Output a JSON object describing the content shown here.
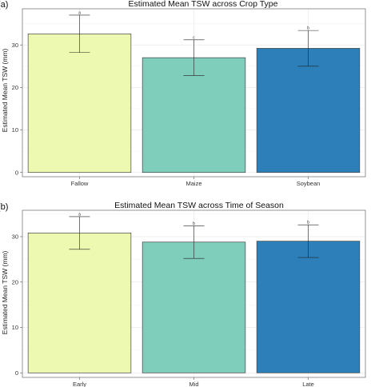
{
  "chart_data": [
    {
      "type": "bar",
      "panel": "(a)",
      "title": "Estimated Mean TSW across Crop Type",
      "xlabel": "",
      "ylabel": "Estimated Mean TSW (mm)",
      "categories": [
        "Fallow",
        "Maize",
        "Soybean"
      ],
      "values": [
        32.6,
        27.0,
        29.2
      ],
      "error_low": [
        28.2,
        22.8,
        25.0
      ],
      "error_high": [
        37.0,
        31.2,
        33.4
      ],
      "letters": [
        "a",
        "c",
        "b"
      ],
      "colors": [
        "#edf8b1",
        "#7fcdbb",
        "#2c7fb8"
      ],
      "yticks": [
        0,
        10,
        20,
        30
      ],
      "ylim": [
        -1,
        38.5
      ],
      "grid": true
    },
    {
      "type": "bar",
      "panel": "(b)",
      "title": "Estimated Mean TSW across Time of Season",
      "xlabel": "",
      "ylabel": "Estimated Mean TSW (mm)",
      "categories": [
        "Early",
        "Mid",
        "Late"
      ],
      "values": [
        30.8,
        28.8,
        29.0
      ],
      "error_low": [
        27.2,
        25.2,
        25.4
      ],
      "error_high": [
        34.4,
        32.4,
        32.6
      ],
      "letters": [
        "a",
        "b",
        "b"
      ],
      "colors": [
        "#edf8b1",
        "#7fcdbb",
        "#2c7fb8"
      ],
      "yticks": [
        0,
        10,
        20,
        30
      ],
      "ylim": [
        -1,
        35.8
      ],
      "grid": true
    }
  ]
}
